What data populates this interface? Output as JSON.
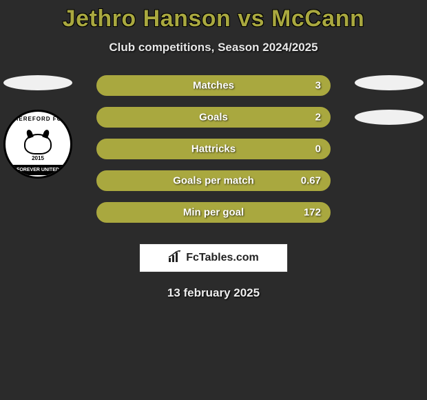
{
  "title": "Jethro Hanson vs McCann",
  "subtitle": "Club competitions, Season 2024/2025",
  "theme": {
    "accent_color": "#a9a83f",
    "background_color": "#2b2b2b",
    "text_color": "#ffffff",
    "ellipse_color": "#f0f0f0"
  },
  "left_player": {
    "club_badge": {
      "top_text": "HEREFORD FC",
      "year": "2015",
      "bottom_text": "FOREVER UNITED"
    }
  },
  "stats": [
    {
      "label": "Matches",
      "value_right": "3",
      "fill_pct": 100
    },
    {
      "label": "Goals",
      "value_right": "2",
      "fill_pct": 100
    },
    {
      "label": "Hattricks",
      "value_right": "0",
      "fill_pct": 100
    },
    {
      "label": "Goals per match",
      "value_right": "0.67",
      "fill_pct": 100
    },
    {
      "label": "Min per goal",
      "value_right": "172",
      "fill_pct": 100
    }
  ],
  "brand": {
    "text": "FcTables.com"
  },
  "date": "13 february 2025"
}
